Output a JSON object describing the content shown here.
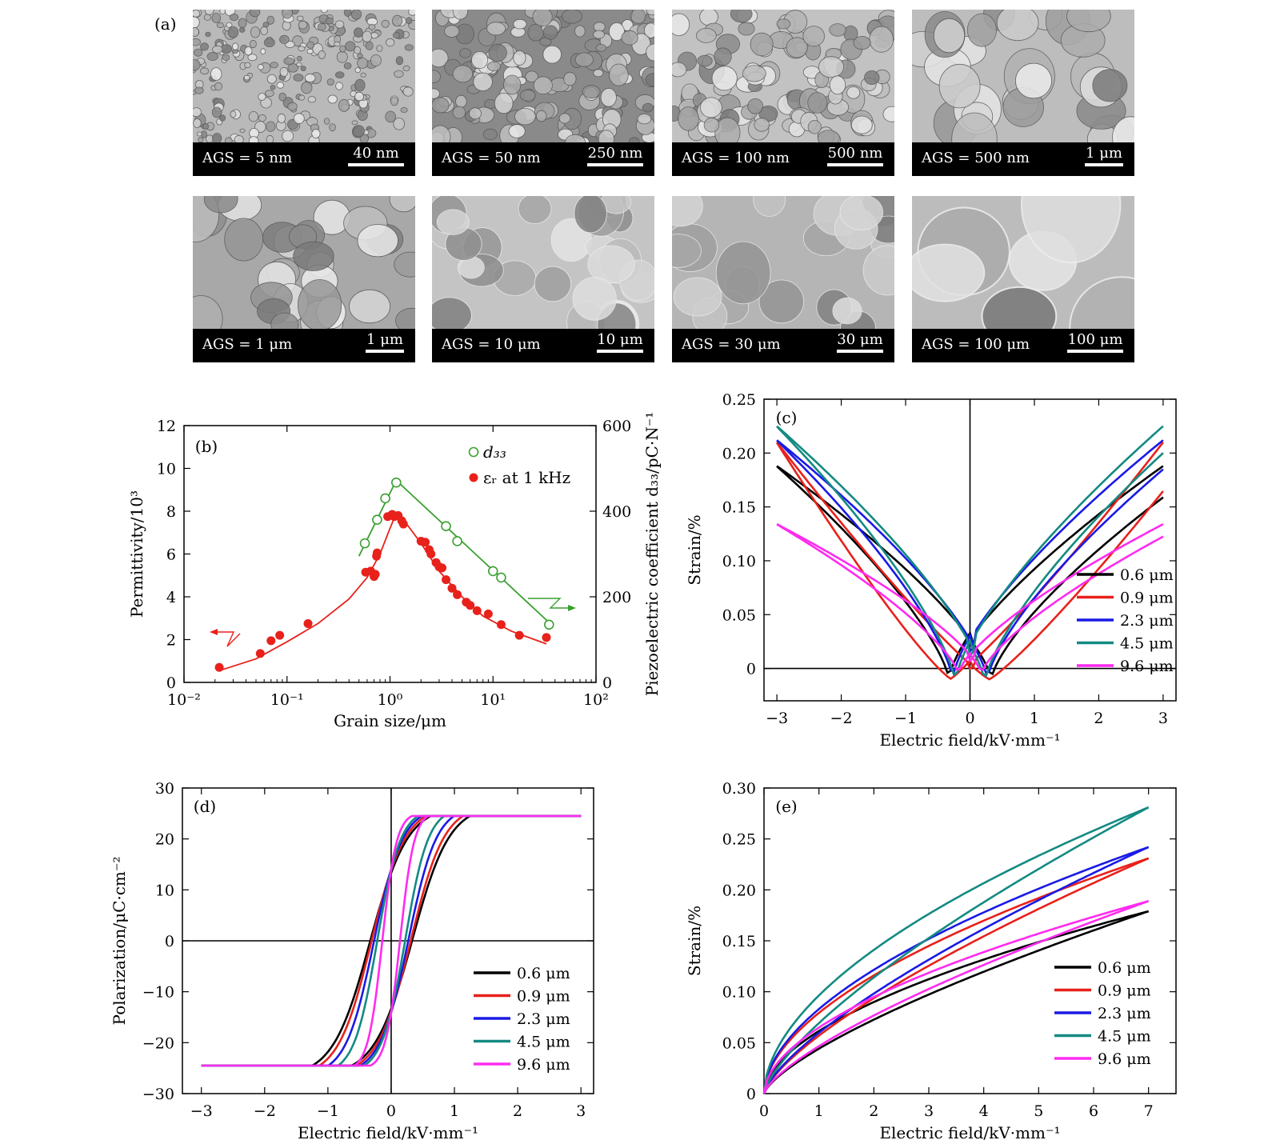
{
  "panel_a": {
    "label": "(a)",
    "images": [
      {
        "label": "AGS = 5 nm",
        "scale": "40 nm",
        "texture": "fine"
      },
      {
        "label": "AGS = 50 nm",
        "scale": "250 nm",
        "texture": "grainy"
      },
      {
        "label": "AGS = 100 nm",
        "scale": "500 nm",
        "texture": "grainy-light"
      },
      {
        "label": "AGS = 500 nm",
        "scale": "1 μm",
        "texture": "grains"
      },
      {
        "label": "AGS = 1 μm",
        "scale": "1 μm",
        "texture": "grains-dark"
      },
      {
        "label": "AGS = 10 μm",
        "scale": "10 μm",
        "texture": "domains"
      },
      {
        "label": "AGS = 30 μm",
        "scale": "30 μm",
        "texture": "domains-dark"
      },
      {
        "label": "AGS = 100 μm",
        "scale": "100 μm",
        "texture": "large"
      }
    ]
  },
  "colors": {
    "black": "#000000",
    "red": "#e8211b",
    "blue": "#1a1ae6",
    "teal": "#148a82",
    "magenta": "#ff2bf0",
    "green": "#3aa030"
  },
  "chart_data": [
    {
      "id": "b",
      "type": "scatter",
      "panel_label": "(b)",
      "xlabel": "Grain size/μm",
      "ylabel": "Permittivity/10³",
      "y2label": "Piezoelectric coefficient d₃₃/pC·N⁻¹",
      "xscale": "log",
      "xlim": [
        0.01,
        100
      ],
      "ylim": [
        0,
        12
      ],
      "y2lim": [
        0,
        600
      ],
      "xticks": [
        "10⁻²",
        "10⁻¹",
        "10⁰",
        "10¹",
        "10²"
      ],
      "yticks": [
        0,
        2,
        4,
        6,
        8,
        10,
        12
      ],
      "y2ticks": [
        0,
        200,
        400,
        600
      ],
      "legend": [
        {
          "name": "d₃₃",
          "marker": "open-circle",
          "color": "#3aa030"
        },
        {
          "name": "εᵣ at 1 kHz",
          "marker": "filled-circle",
          "color": "#e8211b"
        }
      ],
      "series": [
        {
          "name": "d₃₃",
          "axis": "y2",
          "color": "#3aa030",
          "x": [
            0.57,
            0.75,
            0.9,
            1.15,
            3.5,
            4.5,
            10,
            12,
            35
          ],
          "y": [
            325,
            380,
            430,
            467,
            365,
            330,
            260,
            245,
            135
          ],
          "fit_x": [
            0.5,
            1.15,
            35
          ],
          "fit_y": [
            295,
            472,
            140
          ]
        },
        {
          "name": "εᵣ at 1 kHz",
          "axis": "y",
          "color": "#e8211b",
          "x": [
            0.022,
            0.055,
            0.07,
            0.085,
            0.16,
            0.58,
            0.65,
            0.7,
            0.72,
            0.74,
            0.75,
            0.95,
            1.05,
            1.1,
            1.2,
            1.3,
            1.35,
            2,
            2.2,
            2.4,
            2.5,
            2.8,
            3,
            3.2,
            3.5,
            4,
            4.5,
            5.5,
            6,
            7,
            9,
            12,
            18,
            33
          ],
          "y": [
            0.7,
            1.35,
            1.95,
            2.2,
            2.75,
            5.15,
            5.2,
            4.95,
            5.05,
            5.9,
            6.05,
            7.75,
            7.85,
            7.75,
            7.8,
            7.55,
            7.4,
            6.6,
            6.55,
            6.2,
            6.0,
            5.6,
            5.4,
            5.35,
            4.8,
            4.4,
            4.1,
            3.75,
            3.6,
            3.35,
            3.2,
            2.7,
            2.2,
            2.1
          ],
          "fit_x": [
            0.022,
            0.05,
            0.1,
            0.2,
            0.4,
            0.6,
            0.8,
            1.0,
            1.15,
            1.4,
            2,
            3,
            5,
            8,
            15,
            33
          ],
          "fit_y": [
            0.55,
            1.1,
            1.9,
            2.75,
            3.9,
            4.9,
            6.0,
            7.2,
            7.9,
            7.5,
            6.5,
            5.2,
            4.0,
            3.1,
            2.4,
            1.8
          ]
        }
      ]
    },
    {
      "id": "c",
      "type": "line",
      "panel_label": "(c)",
      "xlabel": "Electric field/kV·mm⁻¹",
      "ylabel": "Strain/%",
      "xlim": [
        -3.2,
        3.2
      ],
      "ylim": [
        -0.03,
        0.25
      ],
      "xticks": [
        "−3",
        "−2",
        "−1",
        "0",
        "1",
        "2",
        "3"
      ],
      "xtick_values": [
        -3,
        -2,
        -1,
        0,
        1,
        2,
        3
      ],
      "yticks": [
        "0",
        "0.05",
        "0.10",
        "0.15",
        "0.20",
        "0.25"
      ],
      "ytick_values": [
        0,
        0.05,
        0.1,
        0.15,
        0.2,
        0.25
      ],
      "legend_position": "lower-right",
      "series": [
        {
          "name": "0.6 μm",
          "color": "#000000",
          "ymax": 0.188,
          "ec": 0.33,
          "a": 0.95,
          "vmin": -0.01
        },
        {
          "name": "0.9 μm",
          "color": "#e8211b",
          "ymax": 0.21,
          "ec": 0.3,
          "a": 1.2,
          "vmin": -0.01
        },
        {
          "name": "2.3 μm",
          "color": "#1a1ae6",
          "ymax": 0.212,
          "ec": 0.27,
          "a": 0.55,
          "vmin": -0.01
        },
        {
          "name": "4.5 μm",
          "color": "#148a82",
          "ymax": 0.225,
          "ec": 0.23,
          "a": 0.45,
          "vmin": -0.013
        },
        {
          "name": "9.6 μm",
          "color": "#ff2bf0",
          "ymax": 0.134,
          "ec": 0.18,
          "a": 0.9,
          "vmin": -0.005
        }
      ]
    },
    {
      "id": "d",
      "type": "line",
      "panel_label": "(d)",
      "xlabel": "Electric field/kV·mm⁻¹",
      "ylabel": "Polarization/μC·cm⁻²",
      "xlim": [
        -3.3,
        3.2
      ],
      "ylim": [
        -30,
        30
      ],
      "xticks": [
        "−3",
        "−2",
        "−1",
        "0",
        "1",
        "2",
        "3"
      ],
      "xtick_values": [
        -3,
        -2,
        -1,
        0,
        1,
        2,
        3
      ],
      "yticks": [
        "−30",
        "−20",
        "−10",
        "0",
        "10",
        "20",
        "30"
      ],
      "ytick_values": [
        -30,
        -20,
        -10,
        0,
        10,
        20,
        30
      ],
      "legend_position": "lower-right",
      "series": [
        {
          "name": "0.6 μm",
          "color": "#000000",
          "ps": 27,
          "ec": 0.33,
          "w": 0.58
        },
        {
          "name": "0.9 μm",
          "color": "#e8211b",
          "ps": 27,
          "ec": 0.31,
          "w": 0.52
        },
        {
          "name": "2.3 μm",
          "color": "#1a1ae6",
          "ps": 26.8,
          "ec": 0.27,
          "w": 0.44
        },
        {
          "name": "4.5 μm",
          "color": "#148a82",
          "ps": 26.6,
          "ec": 0.22,
          "w": 0.36
        },
        {
          "name": "9.6 μm",
          "color": "#ff2bf0",
          "ps": 26,
          "ec": 0.14,
          "w": 0.22
        }
      ]
    },
    {
      "id": "e",
      "type": "line",
      "panel_label": "(e)",
      "xlabel": "Electric field/kV·mm⁻¹",
      "ylabel": "Strain/%",
      "xlim": [
        0,
        7.5
      ],
      "ylim": [
        0,
        0.3
      ],
      "xticks": [
        "0",
        "1",
        "2",
        "3",
        "4",
        "5",
        "6",
        "7"
      ],
      "xtick_values": [
        0,
        1,
        2,
        3,
        4,
        5,
        6,
        7
      ],
      "yticks": [
        "0",
        "0.05",
        "0.10",
        "0.15",
        "0.20",
        "0.25",
        "0.30"
      ],
      "ytick_values": [
        0,
        0.05,
        0.1,
        0.15,
        0.2,
        0.25,
        0.3
      ],
      "legend_position": "lower-right",
      "series": [
        {
          "name": "0.6 μm",
          "color": "#000000",
          "ymax": 0.179
        },
        {
          "name": "0.9 μm",
          "color": "#e8211b",
          "ymax": 0.231
        },
        {
          "name": "2.3 μm",
          "color": "#1a1ae6",
          "ymax": 0.242
        },
        {
          "name": "4.5 μm",
          "color": "#148a82",
          "ymax": 0.281
        },
        {
          "name": "9.6 μm",
          "color": "#ff2bf0",
          "ymax": 0.189
        }
      ]
    }
  ]
}
